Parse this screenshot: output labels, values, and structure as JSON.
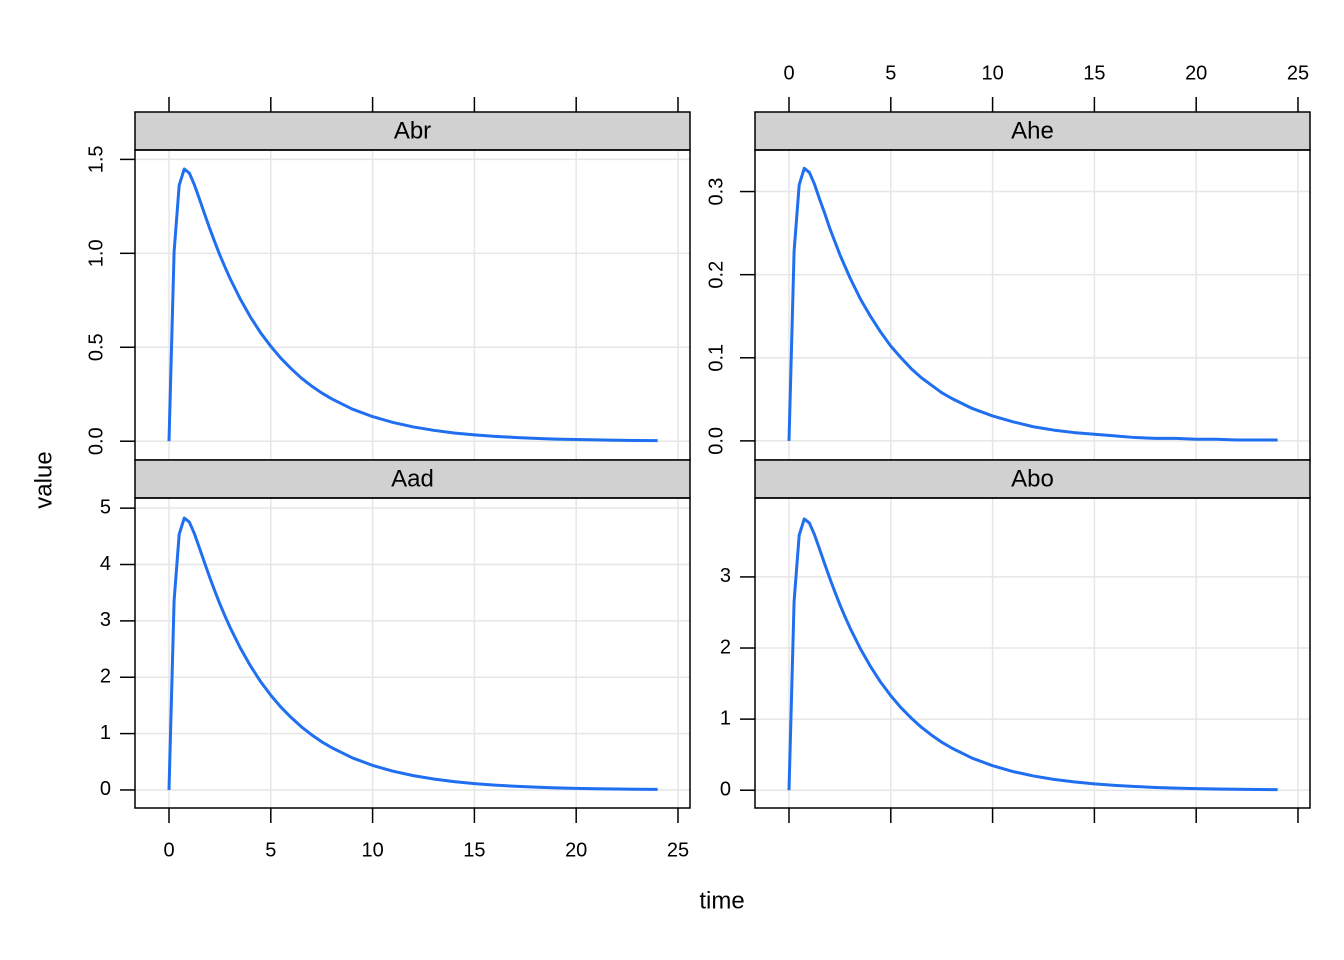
{
  "x_label": "time",
  "y_label": "value",
  "chart_data": [
    {
      "type": "line",
      "title": "Abr",
      "color": "#1f6ff0",
      "grid": true,
      "x": [
        0,
        0.25,
        0.5,
        0.75,
        1,
        1.25,
        1.5,
        1.75,
        2,
        2.25,
        2.5,
        2.75,
        3,
        3.5,
        4,
        4.5,
        5,
        5.5,
        6,
        6.5,
        7,
        7.5,
        8,
        9,
        10,
        11,
        12,
        13,
        14,
        15,
        16,
        17,
        18,
        19,
        20,
        21,
        22,
        23,
        24
      ],
      "values": [
        0,
        1.008,
        1.362,
        1.449,
        1.427,
        1.364,
        1.288,
        1.209,
        1.132,
        1.06,
        0.99,
        0.927,
        0.866,
        0.757,
        0.661,
        0.577,
        0.505,
        0.441,
        0.386,
        0.336,
        0.294,
        0.257,
        0.225,
        0.171,
        0.131,
        0.1,
        0.076,
        0.058,
        0.044,
        0.034,
        0.026,
        0.02,
        0.015,
        0.011,
        0.009,
        0.007,
        0.005,
        0.004,
        0.003
      ],
      "xlim": [
        -1.67,
        25.59
      ],
      "xticks": [
        0,
        5,
        10,
        15,
        20,
        25
      ],
      "ylim": [
        -0.1,
        1.55
      ],
      "yticks": [
        {
          "value": 0,
          "label": "0.0"
        },
        0.5,
        {
          "value": 1,
          "label": "1.0"
        },
        1.5
      ]
    },
    {
      "type": "line",
      "title": "Ahe",
      "color": "#1f6ff0",
      "grid": true,
      "x": [
        0,
        0.25,
        0.5,
        0.75,
        1,
        1.25,
        1.5,
        1.75,
        2,
        2.25,
        2.5,
        2.75,
        3,
        3.5,
        4,
        4.5,
        5,
        5.5,
        6,
        6.5,
        7,
        7.5,
        8,
        9,
        10,
        11,
        12,
        13,
        14,
        15,
        16,
        17,
        18,
        19,
        20,
        21,
        22,
        23,
        24
      ],
      "values": [
        0,
        0.228,
        0.308,
        0.328,
        0.323,
        0.309,
        0.291,
        0.274,
        0.256,
        0.24,
        0.224,
        0.21,
        0.196,
        0.171,
        0.15,
        0.131,
        0.114,
        0.1,
        0.087,
        0.076,
        0.067,
        0.058,
        0.051,
        0.039,
        0.03,
        0.023,
        0.017,
        0.013,
        0.01,
        0.008,
        0.006,
        0.004,
        0.003,
        0.003,
        0.002,
        0.002,
        0.001,
        0.001,
        0.001
      ],
      "xlim": [
        -1.67,
        25.59
      ],
      "xticks": [
        0,
        5,
        10,
        15,
        20,
        25
      ],
      "ylim": [
        -0.023,
        0.35
      ],
      "yticks": [
        {
          "value": 0,
          "label": "0.0"
        },
        0.1,
        0.2,
        0.3
      ]
    },
    {
      "type": "line",
      "title": "Aad",
      "color": "#1f6ff0",
      "grid": true,
      "x": [
        0,
        0.25,
        0.5,
        0.75,
        1,
        1.25,
        1.5,
        1.75,
        2,
        2.25,
        2.5,
        2.75,
        3,
        3.5,
        4,
        4.5,
        5,
        5.5,
        6,
        6.5,
        7,
        7.5,
        8,
        9,
        10,
        11,
        12,
        13,
        14,
        15,
        16,
        17,
        18,
        19,
        20,
        21,
        22,
        23,
        24
      ],
      "values": [
        0,
        3.357,
        4.535,
        4.825,
        4.753,
        4.545,
        4.289,
        4.028,
        3.772,
        3.531,
        3.299,
        3.086,
        2.884,
        2.521,
        2.202,
        1.922,
        1.681,
        1.468,
        1.285,
        1.121,
        0.98,
        0.855,
        0.749,
        0.57,
        0.436,
        0.333,
        0.254,
        0.194,
        0.148,
        0.113,
        0.086,
        0.066,
        0.05,
        0.038,
        0.029,
        0.022,
        0.017,
        0.013,
        0.01
      ],
      "xlim": [
        -1.67,
        25.59
      ],
      "xticks": [
        0,
        5,
        10,
        15,
        20,
        25
      ],
      "ylim": [
        -0.32,
        5.18
      ],
      "yticks": [
        0,
        1,
        2,
        3,
        4,
        5
      ]
    },
    {
      "type": "line",
      "title": "Abo",
      "color": "#1f6ff0",
      "grid": true,
      "x": [
        0,
        0.25,
        0.5,
        0.75,
        1,
        1.25,
        1.5,
        1.75,
        2,
        2.25,
        2.5,
        2.75,
        3,
        3.5,
        4,
        4.5,
        5,
        5.5,
        6,
        6.5,
        7,
        7.5,
        8,
        9,
        10,
        11,
        12,
        13,
        14,
        15,
        16,
        17,
        18,
        19,
        20,
        21,
        22,
        23,
        24
      ],
      "values": [
        0,
        2.655,
        3.587,
        3.816,
        3.759,
        3.595,
        3.392,
        3.186,
        2.983,
        2.792,
        2.609,
        2.441,
        2.281,
        1.994,
        1.742,
        1.52,
        1.329,
        1.161,
        1.016,
        0.886,
        0.775,
        0.676,
        0.592,
        0.451,
        0.345,
        0.263,
        0.201,
        0.153,
        0.117,
        0.089,
        0.068,
        0.052,
        0.039,
        0.03,
        0.023,
        0.018,
        0.013,
        0.01,
        0.008
      ],
      "xlim": [
        -1.67,
        25.59
      ],
      "xticks": [
        0,
        5,
        10,
        15,
        20,
        25
      ],
      "ylim": [
        -0.25,
        4.11
      ],
      "yticks": [
        0,
        1,
        2,
        3
      ]
    }
  ]
}
